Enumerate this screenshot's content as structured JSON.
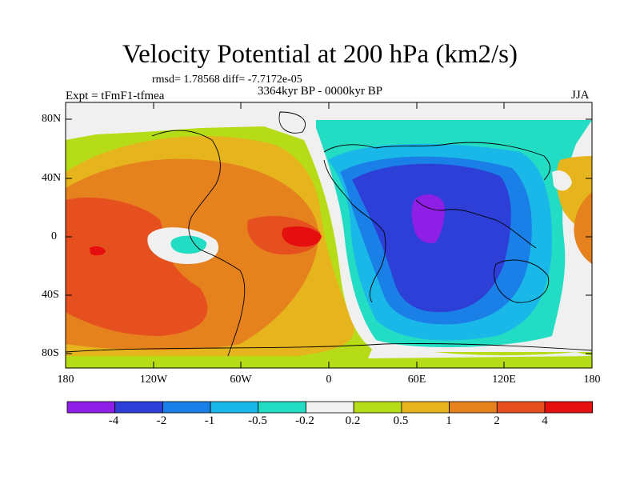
{
  "title": "Velocity Potential at 200 hPa (km2/s)",
  "stats": "rmsd= 1.78568 diff= -7.7172e-05",
  "experiment": "Expt = tFmF1-tfmea",
  "period": "3364kyr BP - 0000kyr BP",
  "season": "JJA",
  "axes": {
    "y_ticks": [
      "80N",
      "40N",
      "0",
      "40S",
      "80S"
    ],
    "x_ticks": [
      "180",
      "120W",
      "60W",
      "0",
      "60E",
      "120E",
      "180"
    ]
  },
  "colorbar": {
    "colors": [
      "#8f1ee6",
      "#2d3fd6",
      "#1a7fe6",
      "#1ab8e8",
      "#23dcc4",
      "#f0f0f0",
      "#b6dc18",
      "#e6b41c",
      "#e6821e",
      "#e6501e",
      "#e60f0f"
    ],
    "labels": [
      "-4",
      "-2",
      "-1",
      "-0.5",
      "-0.2",
      "0.2",
      "0.5",
      "1",
      "2",
      "4"
    ]
  },
  "palette": {
    "violet": "#8f1ee6",
    "blue": "#2d3fd6",
    "mid_blue": "#1a7fe6",
    "light_blue": "#1ab8e8",
    "cyan": "#23dcc4",
    "white": "#f0f0f0",
    "yellow_green": "#b6dc18",
    "gold": "#e6b41c",
    "orange": "#e6821e",
    "dark_orange": "#e6501e",
    "red": "#e60f0f"
  }
}
